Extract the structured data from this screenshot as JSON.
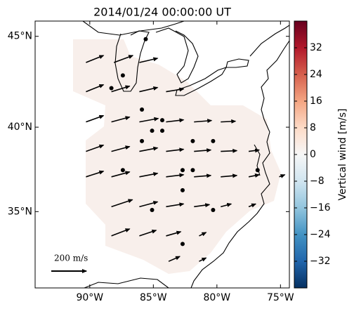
{
  "chart_data": {
    "type": "quiver-map",
    "title": "2014/01/24 00:00:00 UT",
    "xlim": [
      -94.3,
      -74.3
    ],
    "ylim": [
      30.2,
      45.8
    ],
    "xticks": [
      {
        "value": -90,
        "label": "90°W"
      },
      {
        "value": -85,
        "label": "85°W"
      },
      {
        "value": -80,
        "label": "80°W"
      },
      {
        "value": -75,
        "label": "75°W"
      }
    ],
    "yticks": [
      {
        "value": 35,
        "label": "35°N"
      },
      {
        "value": 40,
        "label": "40°N"
      },
      {
        "value": 45,
        "label": "45°N"
      }
    ],
    "domain_color": "#f8efeb",
    "arrow_color": "#000000",
    "arrows": {
      "lon": [
        -90.3,
        -88.1,
        -86.1,
        -90.3,
        -88.3,
        -86.1,
        -84.0,
        -90.3,
        -88.3,
        -86.1,
        -84.0,
        -81.8,
        -79.7,
        -90.3,
        -88.3,
        -86.1,
        -84.0,
        -81.8,
        -79.7,
        -77.5,
        -90.3,
        -88.3,
        -86.1,
        -84.0,
        -81.8,
        -79.7,
        -77.5,
        -75.1,
        -88.3,
        -86.1,
        -84.0,
        -81.8,
        -79.7,
        -77.5,
        -88.3,
        -86.1,
        -84.0,
        -81.4,
        -83.8,
        -81.4
      ],
      "lat": [
        43.6,
        43.6,
        43.6,
        42.0,
        42.0,
        42.0,
        42.0,
        40.3,
        40.3,
        40.3,
        40.3,
        40.3,
        40.3,
        38.6,
        38.6,
        38.6,
        38.6,
        38.6,
        38.6,
        38.6,
        37.1,
        37.1,
        37.1,
        37.1,
        37.1,
        37.1,
        37.1,
        37.1,
        35.3,
        35.3,
        35.3,
        35.3,
        35.3,
        35.3,
        33.5,
        33.5,
        33.5,
        33.5,
        31.9,
        31.9
      ],
      "u": [
        100,
        108,
        104,
        100,
        104,
        104,
        100,
        100,
        104,
        108,
        100,
        100,
        84,
        100,
        104,
        104,
        100,
        96,
        92,
        60,
        100,
        104,
        104,
        100,
        96,
        92,
        60,
        32,
        120,
        104,
        100,
        88,
        60,
        40,
        104,
        96,
        84,
        40,
        64,
        40
      ],
      "v": [
        40,
        40,
        24,
        40,
        32,
        24,
        16,
        36,
        28,
        20,
        12,
        8,
        4,
        36,
        28,
        20,
        12,
        8,
        4,
        8,
        32,
        28,
        20,
        12,
        8,
        8,
        12,
        12,
        40,
        28,
        16,
        12,
        16,
        16,
        40,
        32,
        24,
        20,
        28,
        20
      ]
    },
    "points": {
      "lon": [
        -85.6,
        -87.4,
        -88.3,
        -85.9,
        -85.1,
        -84.3,
        -84.3,
        -85.9,
        -81.9,
        -80.3,
        -87.4,
        -82.7,
        -81.9,
        -76.8,
        -82.7,
        -85.1,
        -80.3,
        -82.7
      ],
      "lat": [
        44.85,
        42.9,
        42.2,
        41.0,
        39.8,
        39.8,
        40.4,
        39.2,
        39.2,
        39.2,
        37.5,
        37.5,
        37.5,
        37.5,
        36.3,
        35.1,
        35.1,
        33.0
      ]
    },
    "quiver_key": {
      "value": 200,
      "label": "200 m/s"
    },
    "colorbar": {
      "label": "Vertical wind [m/s]",
      "lim": [
        -40,
        40
      ],
      "ticks": [
        {
          "value": -32,
          "label": "−32"
        },
        {
          "value": -24,
          "label": "−24"
        },
        {
          "value": -16,
          "label": "−16"
        },
        {
          "value": -8,
          "label": "−8"
        },
        0,
        8,
        16,
        24,
        32
      ],
      "colors": [
        "#053061",
        "#2166ac",
        "#4393c3",
        "#92c5de",
        "#d1e5f0",
        "#f7f7f7",
        "#fddbc7",
        "#f4a582",
        "#d6604d",
        "#b2182b",
        "#67001f"
      ]
    }
  }
}
